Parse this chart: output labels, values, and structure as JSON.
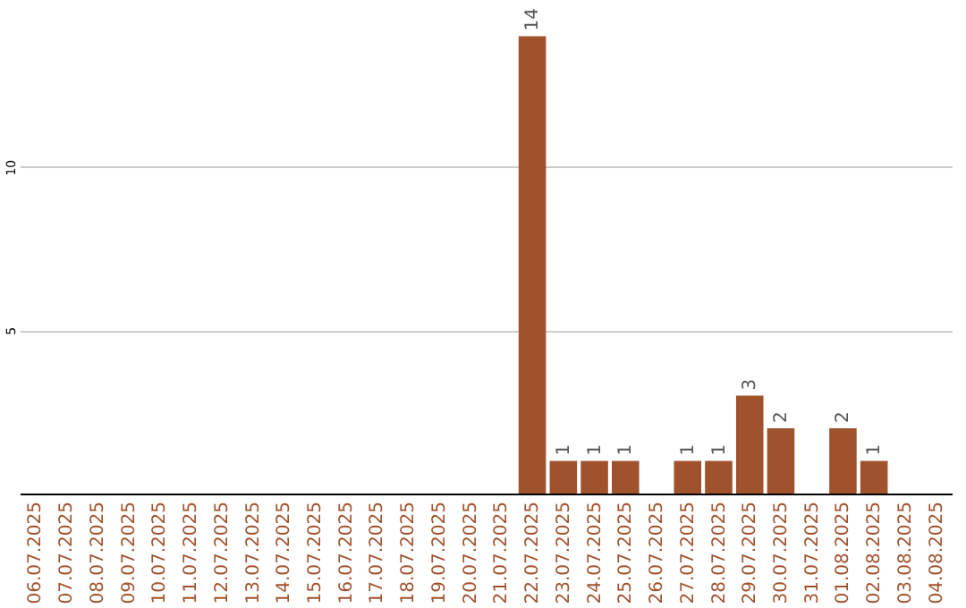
{
  "chart_data": {
    "type": "bar",
    "categories": [
      "06.07.2025",
      "07.07.2025",
      "08.07.2025",
      "09.07.2025",
      "10.07.2025",
      "11.07.2025",
      "12.07.2025",
      "13.07.2025",
      "14.07.2025",
      "15.07.2025",
      "16.07.2025",
      "17.07.2025",
      "18.07.2025",
      "19.07.2025",
      "20.07.2025",
      "21.07.2025",
      "22.07.2025",
      "23.07.2025",
      "24.07.2025",
      "25.07.2025",
      "26.07.2025",
      "27.07.2025",
      "28.07.2025",
      "29.07.2025",
      "30.07.2025",
      "31.07.2025",
      "01.08.2025",
      "02.08.2025",
      "03.08.2025",
      "04.08.2025"
    ],
    "values": [
      0,
      0,
      0,
      0,
      0,
      0,
      0,
      0,
      0,
      0,
      0,
      0,
      0,
      0,
      0,
      0,
      14,
      1,
      1,
      1,
      0,
      1,
      1,
      3,
      2,
      0,
      2,
      1,
      0,
      0
    ],
    "value_labels": [
      null,
      null,
      null,
      null,
      null,
      null,
      null,
      null,
      null,
      null,
      null,
      null,
      null,
      null,
      null,
      null,
      "14",
      "1",
      "1",
      "1",
      null,
      "1",
      "1",
      "3",
      "2",
      null,
      "2",
      "1",
      null,
      null
    ],
    "color": "#a0522d",
    "ylim": [
      0,
      15
    ],
    "yticks": [
      5,
      10
    ],
    "grid": "y"
  }
}
